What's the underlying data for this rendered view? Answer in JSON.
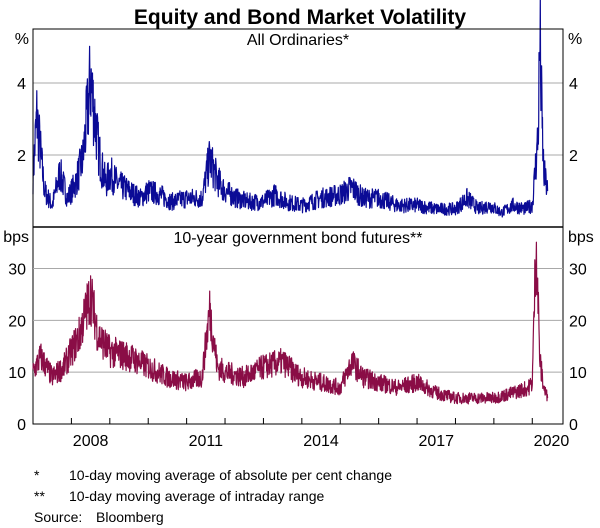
{
  "chart_data": [
    {
      "type": "line",
      "title": "Equity and Bond Market Volatility",
      "subtitle": "All Ordinaries*",
      "ylabel": "%",
      "ylim": [
        0,
        5.5
      ],
      "yticks": [
        2,
        4
      ],
      "color": "#0b0b96",
      "x": [
        2007.0,
        2007.1,
        2007.3,
        2007.5,
        2007.7,
        2007.9,
        2008.1,
        2008.3,
        2008.5,
        2008.7,
        2008.8,
        2008.9,
        2009.0,
        2009.2,
        2009.5,
        2009.8,
        2010.0,
        2010.3,
        2010.6,
        2011.0,
        2011.4,
        2011.6,
        2011.8,
        2012.0,
        2012.3,
        2012.6,
        2013.0,
        2013.3,
        2013.6,
        2014.0,
        2014.5,
        2015.0,
        2015.3,
        2015.6,
        2016.0,
        2016.5,
        2017.0,
        2017.5,
        2018.0,
        2018.3,
        2018.6,
        2018.9,
        2019.2,
        2019.5,
        2019.8,
        2020.0,
        2020.15,
        2020.2,
        2020.25,
        2020.3,
        2020.4
      ],
      "values": [
        1.4,
        3.1,
        1.0,
        0.6,
        1.5,
        0.8,
        1.2,
        1.9,
        4.1,
        2.2,
        1.6,
        1.2,
        1.5,
        1.2,
        1.0,
        0.8,
        1.0,
        0.9,
        0.7,
        0.8,
        0.8,
        1.9,
        1.3,
        1.0,
        0.8,
        0.7,
        0.7,
        0.9,
        0.7,
        0.6,
        0.8,
        0.9,
        1.1,
        0.8,
        0.8,
        0.6,
        0.6,
        0.5,
        0.5,
        0.8,
        0.5,
        0.6,
        0.4,
        0.6,
        0.5,
        0.6,
        2.5,
        5.3,
        3.0,
        1.5,
        1.0
      ]
    },
    {
      "type": "line",
      "subtitle": "10-year government bond futures**",
      "ylabel": "bps",
      "ylim": [
        0,
        38
      ],
      "yticks": [
        0,
        10,
        20,
        30
      ],
      "xticks": [
        "2008",
        "2011",
        "2014",
        "2017",
        "2020"
      ],
      "xlim": [
        2007.0,
        2020.8
      ],
      "color": "#8a0d46",
      "x": [
        2007.0,
        2007.2,
        2007.5,
        2007.8,
        2008.0,
        2008.2,
        2008.5,
        2008.7,
        2009.0,
        2009.5,
        2010.0,
        2010.5,
        2011.0,
        2011.4,
        2011.6,
        2011.8,
        2012.0,
        2012.5,
        2013.0,
        2013.5,
        2013.8,
        2014.0,
        2014.5,
        2015.0,
        2015.3,
        2015.6,
        2016.0,
        2016.5,
        2017.0,
        2017.5,
        2018.0,
        2018.5,
        2019.0,
        2019.5,
        2019.9,
        2020.0,
        2020.1,
        2020.2,
        2020.3,
        2020.4
      ],
      "values": [
        10,
        13,
        9,
        11,
        14,
        17,
        25,
        17,
        14,
        13,
        11,
        9,
        8,
        9,
        22,
        11,
        10,
        9,
        11,
        12,
        10,
        9,
        8,
        7,
        12,
        9,
        8,
        7,
        8,
        6,
        5,
        5,
        5,
        6,
        7,
        8,
        36,
        12,
        7,
        5
      ]
    }
  ],
  "footnotes": [
    {
      "marker": "*",
      "text": "10-day moving average of absolute per cent change"
    },
    {
      "marker": "**",
      "text": "10-day moving average of intraday range"
    }
  ],
  "source": {
    "label": "Source:",
    "text": "Bloomberg"
  }
}
